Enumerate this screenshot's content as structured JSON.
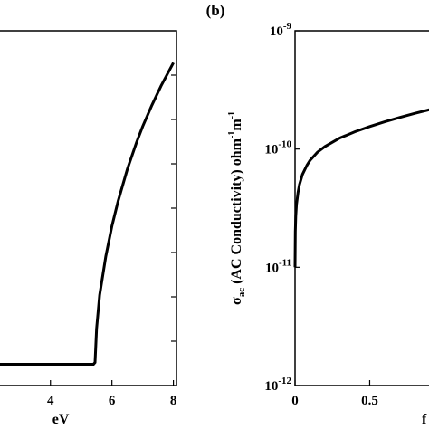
{
  "panel_b_label": "(b)",
  "chart_data": [
    {
      "type": "line",
      "xlabel": "eV",
      "x_ticks": [
        "4",
        "6",
        "8"
      ],
      "xlim": [
        2.3,
        8.1
      ],
      "ylim": [
        0,
        1
      ],
      "x": [
        2.3,
        5.4,
        5.45,
        5.5,
        5.6,
        5.8,
        6.0,
        6.2,
        6.5,
        6.8,
        7.0,
        7.3,
        7.6,
        8.0
      ],
      "y": [
        0.06,
        0.06,
        0.065,
        0.16,
        0.255,
        0.364,
        0.45,
        0.52,
        0.61,
        0.685,
        0.73,
        0.79,
        0.845,
        0.91
      ],
      "color": "#000000"
    },
    {
      "type": "line",
      "ylabel": "σac (AC Conductivity) ohm⁻¹m⁻¹",
      "ylabel_main": "σ",
      "ylabel_sub": "ac",
      "ylabel_rest": " (AC Conductivity) ohm",
      "ylabel_sup1": "-1",
      "ylabel_m": "m",
      "ylabel_sup2": "-1",
      "xlabel": "f",
      "y_scale": "log",
      "ylim": [
        1e-12,
        1e-09
      ],
      "y_ticks": [
        {
          "base": "10",
          "exp": "-9",
          "value": 1e-09
        },
        {
          "base": "10",
          "exp": "-10",
          "value": 1e-10
        },
        {
          "base": "10",
          "exp": "-11",
          "value": 1e-11
        },
        {
          "base": "10",
          "exp": "-12",
          "value": 1e-12
        }
      ],
      "x_ticks": [
        "0",
        "0.5"
      ],
      "x_tick_values": [
        0,
        0.5
      ],
      "xlim": [
        0,
        0.97
      ],
      "x": [
        0.0,
        0.002,
        0.005,
        0.01,
        0.02,
        0.03,
        0.05,
        0.08,
        0.1,
        0.15,
        0.2,
        0.3,
        0.4,
        0.5,
        0.6,
        0.7,
        0.8,
        0.9,
        0.97
      ],
      "y": [
        1e-11,
        2e-11,
        2.7e-11,
        3.4e-11,
        4.3e-11,
        5e-11,
        6.1e-11,
        7.3e-11,
        8e-11,
        9.4e-11,
        1.05e-10,
        1.24e-10,
        1.4e-10,
        1.55e-10,
        1.7e-10,
        1.85e-10,
        2e-10,
        2.15e-10,
        2.25e-10
      ],
      "color": "#000000"
    }
  ]
}
